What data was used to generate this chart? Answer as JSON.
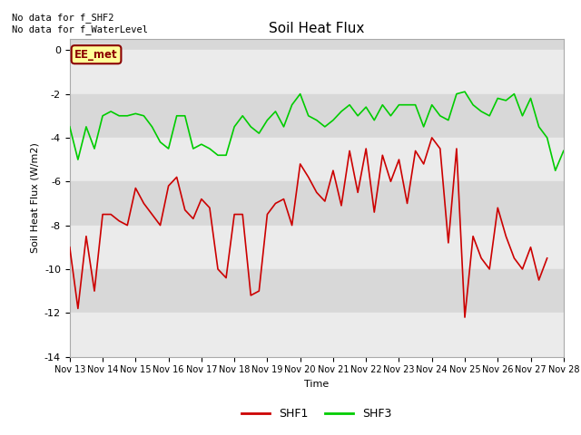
{
  "title": "Soil Heat Flux",
  "xlabel": "Time",
  "ylabel": "Soil Heat Flux (W/m2)",
  "ylim": [
    -14,
    0.5
  ],
  "xlim": [
    0,
    15
  ],
  "xtick_labels": [
    "Nov 13",
    "Nov 14",
    "Nov 15",
    "Nov 16",
    "Nov 17",
    "Nov 18",
    "Nov 19",
    "Nov 20",
    "Nov 21",
    "Nov 22",
    "Nov 23",
    "Nov 24",
    "Nov 25",
    "Nov 26",
    "Nov 27",
    "Nov 28"
  ],
  "ytick_values": [
    0,
    -2,
    -4,
    -6,
    -8,
    -10,
    -12,
    -14
  ],
  "annotation_text": "No data for f_SHF2\nNo data for f_WaterLevel",
  "legend_label1": "SHF1",
  "legend_label2": "SHF3",
  "legend_box_label": "EE_met",
  "shf1_color": "#cc0000",
  "shf3_color": "#00cc00",
  "plot_bg_color": "#d8d8d8",
  "white_band_color": "#ebebeb",
  "shf1_x": [
    0,
    0.25,
    0.5,
    0.75,
    1.0,
    1.25,
    1.5,
    1.75,
    2.0,
    2.25,
    2.5,
    2.75,
    3.0,
    3.25,
    3.5,
    3.75,
    4.0,
    4.25,
    4.5,
    4.75,
    5.0,
    5.25,
    5.5,
    5.75,
    6.0,
    6.25,
    6.5,
    6.75,
    7.0,
    7.25,
    7.5,
    7.75,
    8.0,
    8.25,
    8.5,
    8.75,
    9.0,
    9.25,
    9.5,
    9.75,
    10.0,
    10.25,
    10.5,
    10.75,
    11.0,
    11.25,
    11.5,
    11.75,
    12.0,
    12.25,
    12.5,
    12.75,
    13.0,
    13.25,
    13.5,
    13.75,
    14.0,
    14.25,
    14.5,
    14.75,
    15.0
  ],
  "shf1_y": [
    -9.0,
    -11.8,
    -8.5,
    -11.0,
    -7.5,
    -7.5,
    -7.8,
    -8.0,
    -6.3,
    -7.0,
    -7.5,
    -8.0,
    -6.2,
    -5.8,
    -7.3,
    -7.7,
    -6.8,
    -7.2,
    -10.0,
    -10.4,
    -7.5,
    -7.5,
    -11.2,
    -11.0,
    -7.5,
    -7.0,
    -6.8,
    -8.0,
    -5.2,
    -5.8,
    -6.5,
    -6.9,
    -5.5,
    -7.1,
    -4.6,
    -6.5,
    -4.5,
    -7.4,
    -4.8,
    -6.0,
    -5.0,
    -7.0,
    -4.6,
    -5.2,
    -4.0,
    -4.5,
    -8.8,
    -4.5,
    -12.2,
    -8.5,
    -9.5,
    -10.0,
    -7.2,
    -8.5,
    -9.5,
    -10.0,
    -9.0,
    -10.5,
    -9.5,
    null,
    null
  ],
  "shf3_x": [
    0,
    0.25,
    0.5,
    0.75,
    1.0,
    1.25,
    1.5,
    1.75,
    2.0,
    2.25,
    2.5,
    2.75,
    3.0,
    3.25,
    3.5,
    3.75,
    4.0,
    4.25,
    4.5,
    4.75,
    5.0,
    5.25,
    5.5,
    5.75,
    6.0,
    6.25,
    6.5,
    6.75,
    7.0,
    7.25,
    7.5,
    7.75,
    8.0,
    8.25,
    8.5,
    8.75,
    9.0,
    9.25,
    9.5,
    9.75,
    10.0,
    10.25,
    10.5,
    10.75,
    11.0,
    11.25,
    11.5,
    11.75,
    12.0,
    12.25,
    12.5,
    12.75,
    13.0,
    13.25,
    13.5,
    13.75,
    14.0,
    14.25,
    14.5,
    14.75,
    15.0
  ],
  "shf3_y": [
    -3.5,
    -5.0,
    -3.5,
    -4.5,
    -3.0,
    -2.8,
    -3.0,
    -3.0,
    -2.9,
    -3.0,
    -3.5,
    -4.2,
    -4.5,
    -3.0,
    -3.0,
    -4.5,
    -4.3,
    -4.5,
    -4.8,
    -4.8,
    -3.5,
    -3.0,
    -3.5,
    -3.8,
    -3.2,
    -2.8,
    -3.5,
    -2.5,
    -2.0,
    -3.0,
    -3.2,
    -3.5,
    -3.2,
    -2.8,
    -2.5,
    -3.0,
    -2.6,
    -3.2,
    -2.5,
    -3.0,
    -2.5,
    -2.5,
    -2.5,
    -3.5,
    -2.5,
    -3.0,
    -3.2,
    -2.0,
    -1.9,
    -2.5,
    -2.8,
    -3.0,
    -2.2,
    -2.3,
    -2.0,
    -3.0,
    -2.2,
    -3.5,
    -4.0,
    -5.5,
    -4.6
  ],
  "band_centers": [
    0,
    -2,
    -4,
    -6,
    -8,
    -10,
    -12,
    -14
  ],
  "title_fontsize": 11,
  "tick_fontsize": 7,
  "label_fontsize": 8
}
